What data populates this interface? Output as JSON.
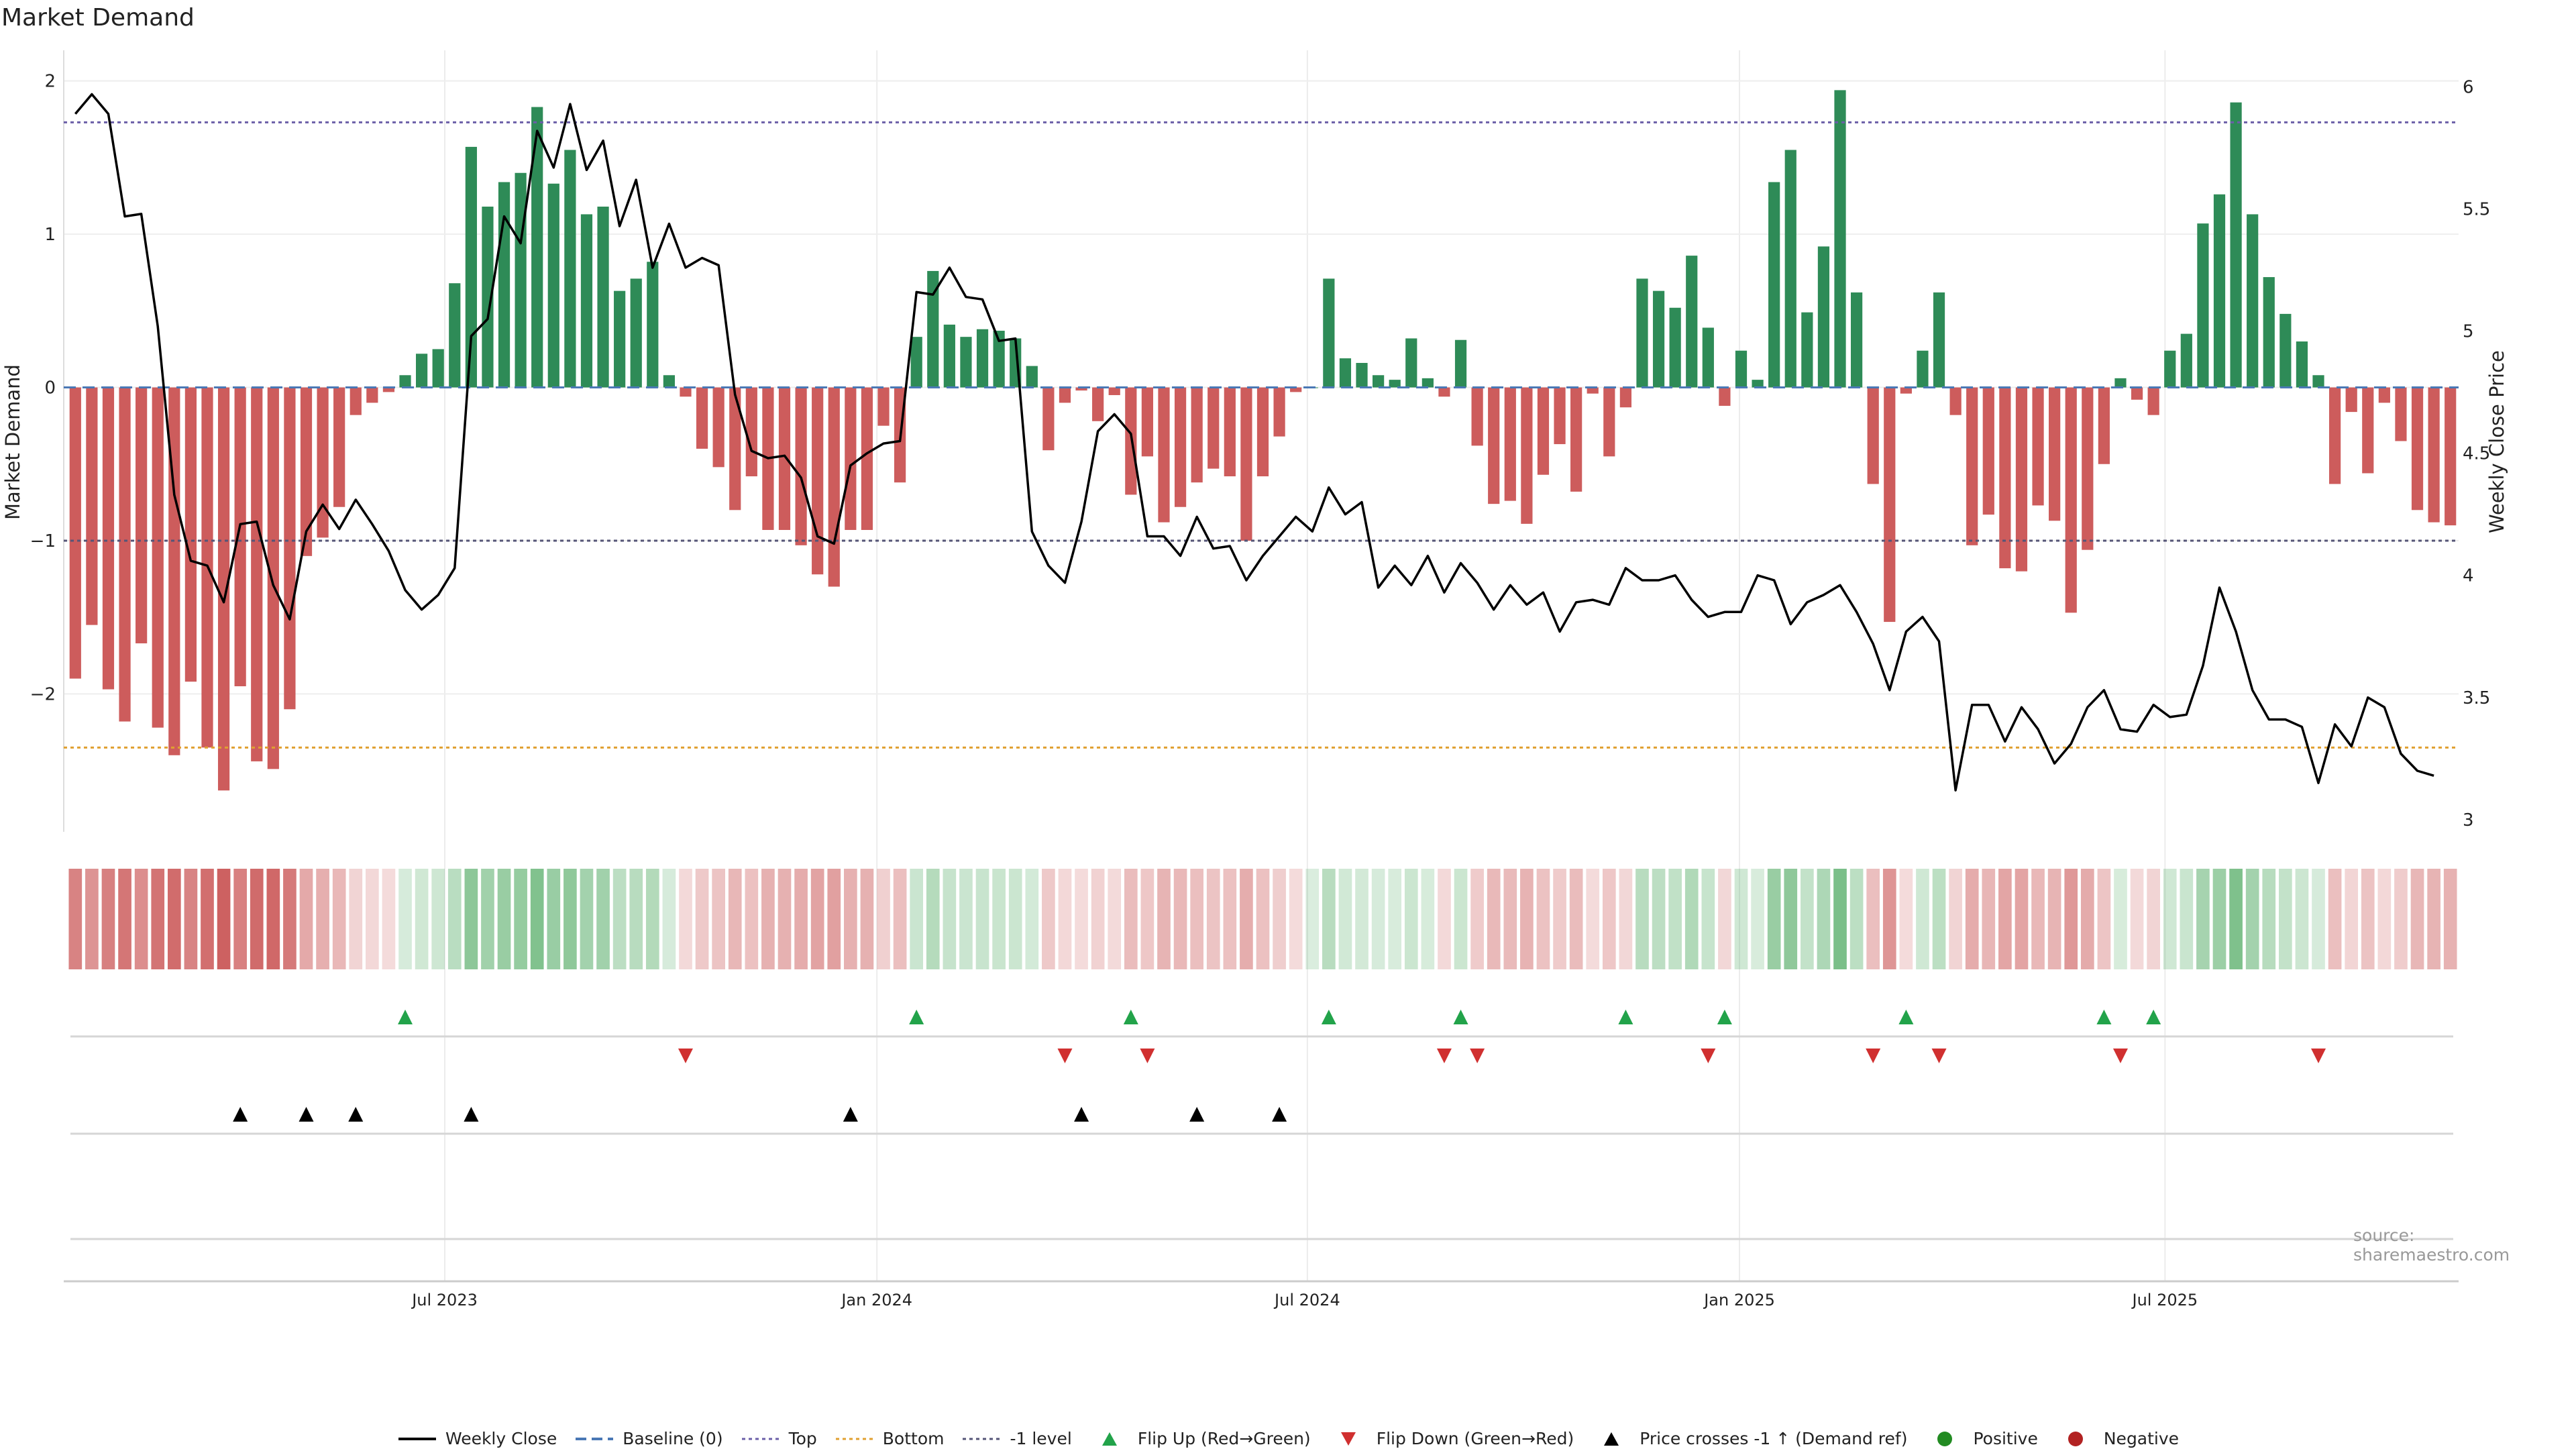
{
  "title": "Market Demand",
  "source": "source: sharemaestro.com",
  "colors": {
    "positive": "#2e8b57",
    "negative": "#cd5c5c",
    "close": "#000000",
    "top_line": "#6b5fa8",
    "bottom_line": "#e0a030",
    "minus1_line": "#555577",
    "baseline": "#4a78b5",
    "flip_up": "#22a34a",
    "flip_down": "#d03030",
    "cross": "#000000",
    "positive_dot": "#228b22",
    "negative_dot": "#b22222"
  },
  "chart_data": {
    "type": "bar",
    "title": "Market Demand",
    "ylabel": "Market Demand",
    "y2label": "Weekly Close Price",
    "ylim": [
      -2.9,
      2.2
    ],
    "y2lim": [
      2.95,
      6.15
    ],
    "yticks": [
      2,
      1,
      0,
      -1,
      -2
    ],
    "ytick_labels": [
      "2",
      "1",
      "0",
      "−1",
      "−2"
    ],
    "y2ticks": [
      6,
      5.5,
      5,
      4.5,
      4,
      3.5,
      3
    ],
    "y2tick_labels": [
      "6",
      "5.5",
      "5",
      "4.5",
      "4",
      "3.5",
      "3"
    ],
    "xtick_labels": [
      "Jul 2023",
      "Jan 2024",
      "Jul 2024",
      "Jan 2025",
      "Jul 2025"
    ],
    "xtick_weeks": [
      22.4,
      48.6,
      74.7,
      100.9,
      126.7
    ],
    "levels": {
      "top": 1.73,
      "bottom": -2.35,
      "minus1": -1.0,
      "baseline": 0
    },
    "demand": [
      -1.9,
      -1.55,
      -1.97,
      -2.18,
      -1.67,
      -2.22,
      -2.4,
      -1.92,
      -2.35,
      -2.63,
      -1.95,
      -2.44,
      -2.49,
      -2.1,
      -1.1,
      -0.98,
      -0.78,
      -0.18,
      -0.1,
      -0.03,
      0.08,
      0.22,
      0.25,
      0.68,
      1.57,
      1.18,
      1.34,
      1.4,
      1.83,
      1.33,
      1.55,
      1.13,
      1.18,
      0.63,
      0.71,
      0.82,
      0.08,
      -0.06,
      -0.4,
      -0.52,
      -0.8,
      -0.58,
      -0.93,
      -0.93,
      -1.03,
      -1.22,
      -1.3,
      -0.93,
      -0.93,
      -0.25,
      -0.62,
      0.33,
      0.76,
      0.41,
      0.33,
      0.38,
      0.37,
      0.32,
      0.14,
      -0.41,
      -0.1,
      -0.02,
      -0.22,
      -0.05,
      -0.7,
      -0.45,
      -0.88,
      -0.78,
      -0.62,
      -0.53,
      -0.58,
      -1.0,
      -0.58,
      -0.32,
      -0.03,
      0.0,
      0.71,
      0.19,
      0.16,
      0.08,
      0.05,
      0.32,
      0.06,
      -0.06,
      0.31,
      -0.38,
      -0.76,
      -0.74,
      -0.89,
      -0.57,
      -0.37,
      -0.68,
      -0.04,
      -0.45,
      -0.13,
      0.71,
      0.63,
      0.52,
      0.86,
      0.39,
      -0.12,
      0.24,
      0.05,
      1.34,
      1.55,
      0.49,
      0.92,
      1.94,
      0.62,
      -0.63,
      -1.53,
      -0.04,
      0.24,
      0.62,
      -0.18,
      -1.03,
      -0.83,
      -1.18,
      -1.2,
      -0.77,
      -0.87,
      -1.47,
      -1.06,
      -0.5,
      0.06,
      -0.08,
      -0.18,
      0.24,
      0.35,
      1.07,
      1.26,
      1.86,
      1.13,
      0.72,
      0.48,
      0.3,
      0.08,
      -0.63,
      -0.16,
      -0.56,
      -0.1,
      -0.35,
      -0.8,
      -0.88,
      -0.9
    ],
    "close": [
      5.89,
      5.97,
      5.89,
      5.47,
      5.48,
      5.02,
      4.33,
      4.06,
      4.04,
      3.89,
      4.21,
      4.22,
      3.96,
      3.82,
      4.18,
      4.29,
      4.19,
      4.31,
      4.21,
      4.1,
      3.94,
      3.86,
      3.92,
      4.03,
      4.98,
      5.05,
      5.47,
      5.36,
      5.82,
      5.67,
      5.93,
      5.66,
      5.78,
      5.43,
      5.62,
      5.26,
      5.44,
      5.26,
      5.3,
      5.27,
      4.74,
      4.51,
      4.48,
      4.49,
      4.4,
      4.16,
      4.13,
      4.45,
      4.5,
      4.54,
      4.55,
      5.16,
      5.15,
      5.26,
      5.14,
      5.13,
      4.96,
      4.97,
      4.18,
      4.04,
      3.97,
      4.22,
      4.59,
      4.66,
      4.58,
      4.16,
      4.16,
      4.08,
      4.24,
      4.11,
      4.12,
      3.98,
      4.08,
      4.16,
      4.24,
      4.18,
      4.36,
      4.25,
      4.3,
      3.95,
      4.04,
      3.96,
      4.08,
      3.93,
      4.05,
      3.97,
      3.86,
      3.96,
      3.88,
      3.93,
      3.77,
      3.89,
      3.9,
      3.88,
      4.03,
      3.98,
      3.98,
      4.0,
      3.9,
      3.83,
      3.85,
      3.85,
      4.0,
      3.98,
      3.8,
      3.89,
      3.92,
      3.96,
      3.85,
      3.72,
      3.53,
      3.77,
      3.83,
      3.73,
      3.12,
      3.47,
      3.47,
      3.32,
      3.46,
      3.37,
      3.23,
      3.31,
      3.46,
      3.53,
      3.37,
      3.36,
      3.47,
      3.42,
      3.43,
      3.63,
      3.95,
      3.77,
      3.53,
      3.41,
      3.41,
      3.38,
      3.15,
      3.39,
      3.3,
      3.5,
      3.46,
      3.27,
      3.2,
      3.18
    ],
    "flip_up_weeks": [
      20,
      51,
      64,
      76,
      84,
      94,
      100,
      111,
      123,
      126
    ],
    "flip_down_weeks": [
      37,
      60,
      65,
      83,
      85,
      99,
      109,
      113,
      124,
      136
    ],
    "cross_weeks": [
      10,
      14,
      17,
      24,
      47,
      61,
      68,
      73
    ]
  },
  "legend": [
    {
      "label": "Weekly Close",
      "key": "close"
    },
    {
      "label": "Baseline (0)",
      "key": "baseline"
    },
    {
      "label": "Top",
      "key": "top"
    },
    {
      "label": "Bottom",
      "key": "bottom"
    },
    {
      "label": "-1 level",
      "key": "minus1"
    },
    {
      "label": "Flip Up (Red→Green)",
      "key": "flip_up"
    },
    {
      "label": "Flip Down (Green→Red)",
      "key": "flip_down"
    },
    {
      "label": "Price crosses -1 ↑ (Demand ref)",
      "key": "cross"
    },
    {
      "label": "Positive",
      "key": "positive_dot"
    },
    {
      "label": "Negative",
      "key": "negative_dot"
    }
  ]
}
